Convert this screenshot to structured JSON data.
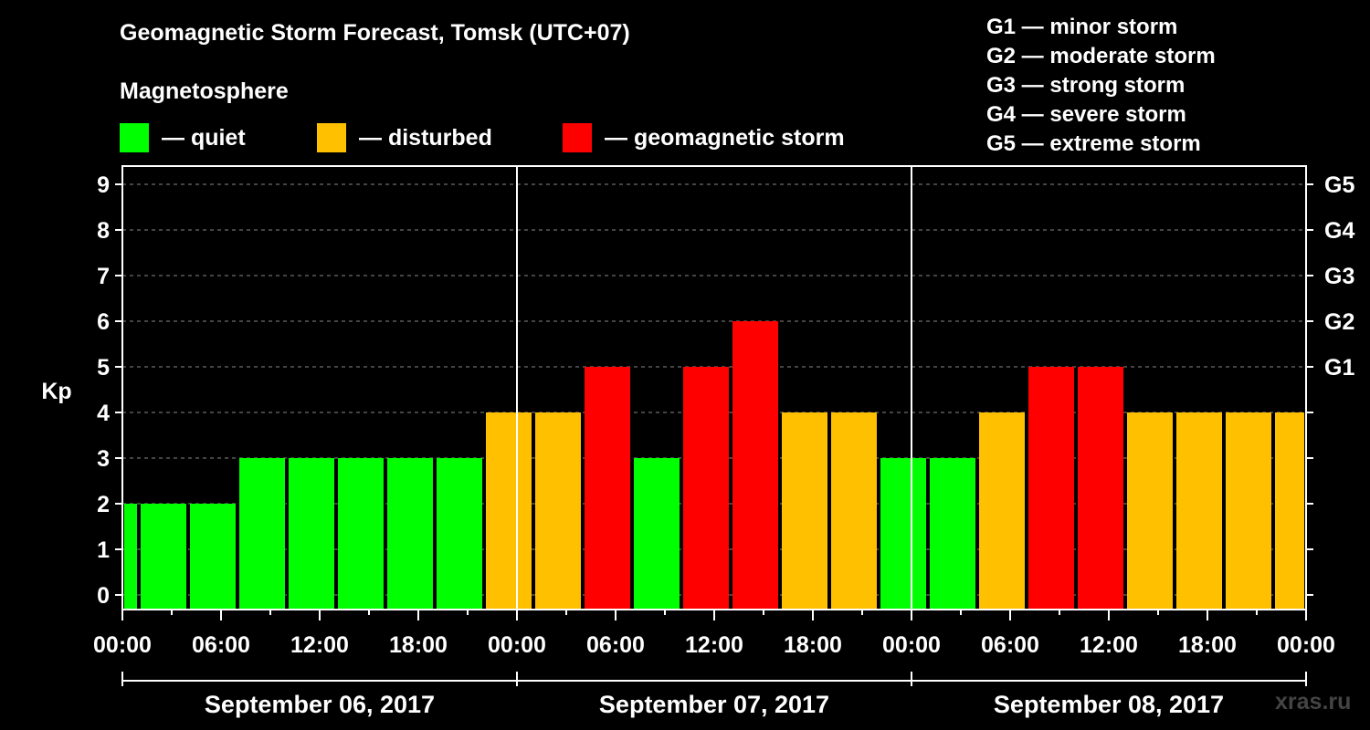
{
  "title": "Geomagnetic Storm Forecast, Tomsk (UTC+07)",
  "subtitle": "Magnetosphere",
  "legend": [
    {
      "label": "— quiet",
      "color": "#00ff00"
    },
    {
      "label": "— disturbed",
      "color": "#ffc000"
    },
    {
      "label": "— geomagnetic storm",
      "color": "#ff0000"
    }
  ],
  "storm_scale": [
    "G1 — minor storm",
    "G2 — moderate storm",
    "G3 — strong storm",
    "G4 — severe storm",
    "G5 — extreme storm"
  ],
  "watermark": "xras.ru",
  "chart_data": {
    "type": "bar",
    "ylabel": "Kp",
    "ylim": [
      0,
      9
    ],
    "yticks": [
      "0",
      "1",
      "2",
      "3",
      "4",
      "5",
      "6",
      "7",
      "8",
      "9"
    ],
    "right_axis": [
      {
        "kp": 5,
        "label": "G1"
      },
      {
        "kp": 6,
        "label": "G2"
      },
      {
        "kp": 7,
        "label": "G3"
      },
      {
        "kp": 8,
        "label": "G4"
      },
      {
        "kp": 9,
        "label": "G5"
      }
    ],
    "x_unit": "hours since September 06, 2017 00:00 (UTC+07)",
    "xlim": [
      0,
      72
    ],
    "xticks": [
      {
        "x": 0,
        "label": "00:00"
      },
      {
        "x": 6,
        "label": "06:00"
      },
      {
        "x": 12,
        "label": "12:00"
      },
      {
        "x": 18,
        "label": "18:00"
      },
      {
        "x": 24,
        "label": "00:00"
      },
      {
        "x": 30,
        "label": "06:00"
      },
      {
        "x": 36,
        "label": "12:00"
      },
      {
        "x": 42,
        "label": "18:00"
      },
      {
        "x": 48,
        "label": "00:00"
      },
      {
        "x": 54,
        "label": "06:00"
      },
      {
        "x": 60,
        "label": "12:00"
      },
      {
        "x": 66,
        "label": "18:00"
      },
      {
        "x": 72,
        "label": "00:00"
      }
    ],
    "days": [
      {
        "label": "September 06, 2017",
        "start": 0,
        "end": 24
      },
      {
        "label": "September 07, 2017",
        "start": 24,
        "end": 48
      },
      {
        "label": "September 08, 2017",
        "start": 48,
        "end": 72
      }
    ],
    "bar_starts": [
      0,
      1,
      4,
      7,
      10,
      13,
      16,
      19,
      22,
      25,
      28,
      31,
      34,
      37,
      40,
      43,
      46,
      49,
      52,
      55,
      58,
      61,
      64,
      67,
      70
    ],
    "bar_ends": [
      1,
      4,
      7,
      10,
      13,
      16,
      19,
      22,
      25,
      28,
      31,
      34,
      37,
      40,
      43,
      46,
      49,
      52,
      55,
      58,
      61,
      64,
      67,
      70,
      72
    ],
    "values": [
      2,
      2,
      2,
      3,
      3,
      3,
      3,
      3,
      4,
      4,
      5,
      3,
      5,
      6,
      4,
      4,
      3,
      3,
      4,
      5,
      5,
      4,
      4,
      4,
      4
    ],
    "colors": {
      "quiet": "#00ff00",
      "disturbed": "#ffc000",
      "storm": "#ff0000"
    },
    "gridlines": "dashed horizontal"
  }
}
